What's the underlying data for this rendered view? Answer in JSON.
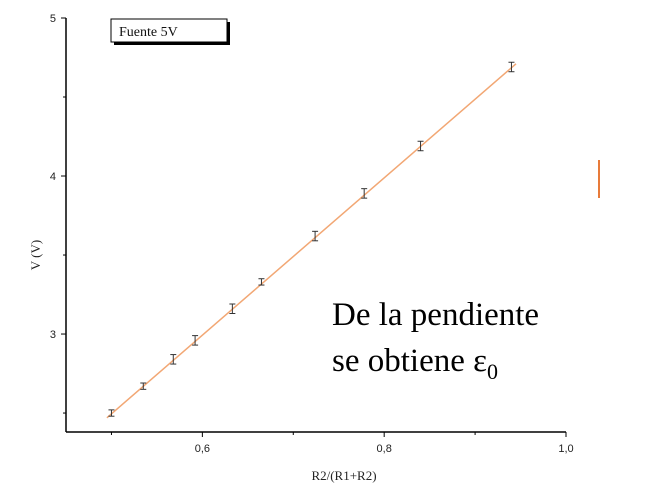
{
  "chart_data": {
    "type": "scatter",
    "xlabel": "R2/(R1+R2)",
    "ylabel": "V (V)",
    "xlim": [
      0.45,
      1.0
    ],
    "ylim": [
      2.38,
      5.0
    ],
    "x_ticks": [
      0.6,
      0.8,
      1.0
    ],
    "x_tick_labels": [
      "0,6",
      "0,8",
      "1,0"
    ],
    "y_ticks": [
      3,
      4,
      5
    ],
    "y_tick_labels": [
      "3",
      "4",
      "5"
    ],
    "legend": {
      "label": "Fuente 5V",
      "position": "top-left"
    },
    "series": [
      {
        "name": "Fuente 5V",
        "marker": "error-bar",
        "color": "#333333",
        "x": [
          0.5,
          0.535,
          0.568,
          0.592,
          0.633,
          0.665,
          0.724,
          0.778,
          0.84,
          0.94
        ],
        "y": [
          2.5,
          2.67,
          2.84,
          2.96,
          3.16,
          3.33,
          3.62,
          3.89,
          4.19,
          4.69
        ],
        "error": [
          0.02,
          0.02,
          0.03,
          0.03,
          0.03,
          0.02,
          0.03,
          0.03,
          0.03,
          0.03
        ]
      }
    ],
    "fit_line": {
      "type": "linear",
      "color": "#f2a774",
      "x": [
        0.495,
        0.945
      ],
      "y": [
        2.47,
        4.71
      ]
    }
  },
  "annotation": {
    "line1": "De la pendiente",
    "line2_prefix": "se obtiene ε",
    "line2_subscript": "0"
  },
  "colors": {
    "fit": "#f2a774",
    "side_mark": "#e87b3a",
    "axis": "#000000"
  }
}
